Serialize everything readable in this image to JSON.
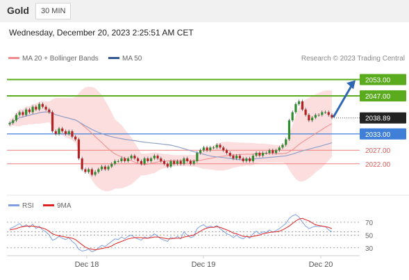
{
  "header": {
    "symbol": "Gold",
    "interval": "30 MIN"
  },
  "timestamp": "Wednesday, December 20, 2023 2:25:51 AM CET",
  "legend": {
    "ma20_label": "MA 20 + Bollinger Bands",
    "ma50_label": "MA 50",
    "copyright": "Research © 2023 Trading Central",
    "rsi_label": "RSI",
    "rsi_ma_label": "9MA"
  },
  "colors": {
    "resistance": "#5aab1e",
    "pivot": "#3f7fd8",
    "support": "#f07a7a",
    "bollinger": "#fbd3d3",
    "ma20": "#f08a8a",
    "ma50": "#8fa0c8",
    "candle_up": "#2e8b2e",
    "candle_down": "#b22222",
    "rsi": "#7fa0e0",
    "rsi_ma": "#e02020",
    "arrow": "#2f67b2",
    "price_badge": "#222222"
  },
  "chart_data": [
    {
      "type": "candlestick",
      "title": "Gold 30 MIN",
      "x": [
        "Dec 18",
        "Dec 19",
        "Dec 20"
      ],
      "ylim": [
        2013,
        2058
      ],
      "last_price": 2038.89,
      "levels": [
        {
          "label": "2053.00",
          "value": 2053.0,
          "kind": "resistance"
        },
        {
          "label": "2047.00",
          "value": 2047.0,
          "kind": "resistance"
        },
        {
          "label": "2033.00",
          "value": 2033.0,
          "kind": "pivot"
        },
        {
          "label": "2027.00",
          "value": 2027.0,
          "kind": "support"
        },
        {
          "label": "2022.00",
          "value": 2022.0,
          "kind": "support"
        }
      ],
      "price_label": "2038.89",
      "price_series": [
        2037,
        2038,
        2040,
        2041,
        2040,
        2042,
        2041,
        2043,
        2042,
        2044,
        2043,
        2042,
        2041,
        2034,
        2033,
        2035,
        2034,
        2033,
        2034,
        2032,
        2031,
        2024,
        2020,
        2019,
        2020,
        2018,
        2019,
        2020,
        2021,
        2020,
        2021,
        2022,
        2023,
        2023,
        2024,
        2023,
        2024,
        2025,
        2024,
        2023,
        2022,
        2024,
        2023,
        2024,
        2025,
        2024,
        2023,
        2022,
        2021,
        2023,
        2022,
        2023,
        2022,
        2024,
        2023,
        2022,
        2023,
        2026,
        2027,
        2028,
        2027,
        2028,
        2028,
        2029,
        2028,
        2027,
        2026,
        2025,
        2024,
        2025,
        2024,
        2023,
        2024,
        2023,
        2025,
        2026,
        2025,
        2026,
        2026,
        2027,
        2026,
        2027,
        2028,
        2029,
        2031,
        2038,
        2041,
        2044,
        2045,
        2042,
        2040,
        2038,
        2039,
        2040,
        2040,
        2041,
        2041,
        2040,
        2039
      ],
      "rsi_ylim": [
        20,
        85
      ],
      "rsi_ticks": [
        "70",
        "50",
        "30"
      ],
      "rsi_guides": [
        70,
        55,
        50,
        30
      ],
      "rsi": [
        60,
        62,
        65,
        68,
        63,
        66,
        62,
        67,
        60,
        64,
        58,
        55,
        50,
        42,
        44,
        48,
        45,
        43,
        46,
        40,
        36,
        28,
        25,
        26,
        28,
        24,
        26,
        30,
        34,
        32,
        36,
        40,
        44,
        43,
        47,
        44,
        48,
        50,
        46,
        44,
        42,
        47,
        45,
        48,
        52,
        48,
        44,
        42,
        40,
        47,
        44,
        48,
        44,
        55,
        50,
        46,
        48,
        60,
        64,
        66,
        62,
        64,
        62,
        65,
        60,
        56,
        52,
        50,
        46,
        50,
        46,
        44,
        48,
        45,
        52,
        56,
        52,
        55,
        54,
        58,
        54,
        57,
        60,
        64,
        68,
        76,
        80,
        82,
        78,
        70,
        64,
        60,
        62,
        64,
        63,
        64,
        63,
        58,
        55
      ],
      "rsi_ma": [
        58,
        59,
        60,
        62,
        63,
        64,
        64,
        64,
        63,
        62,
        61,
        59,
        56,
        52,
        50,
        49,
        48,
        47,
        46,
        45,
        43,
        39,
        35,
        31,
        29,
        28,
        27,
        28,
        29,
        30,
        31,
        33,
        36,
        38,
        40,
        42,
        44,
        45,
        46,
        46,
        46,
        45,
        45,
        46,
        47,
        47,
        46,
        45,
        44,
        44,
        45,
        45,
        45,
        47,
        48,
        49,
        50,
        53,
        56,
        59,
        61,
        62,
        62,
        63,
        62,
        60,
        58,
        56,
        53,
        52,
        50,
        48,
        48,
        47,
        48,
        49,
        50,
        52,
        53,
        54,
        55,
        55,
        56,
        58,
        61,
        64,
        68,
        72,
        75,
        76,
        74,
        72,
        69,
        66,
        65,
        64,
        63,
        62,
        60
      ]
    }
  ]
}
